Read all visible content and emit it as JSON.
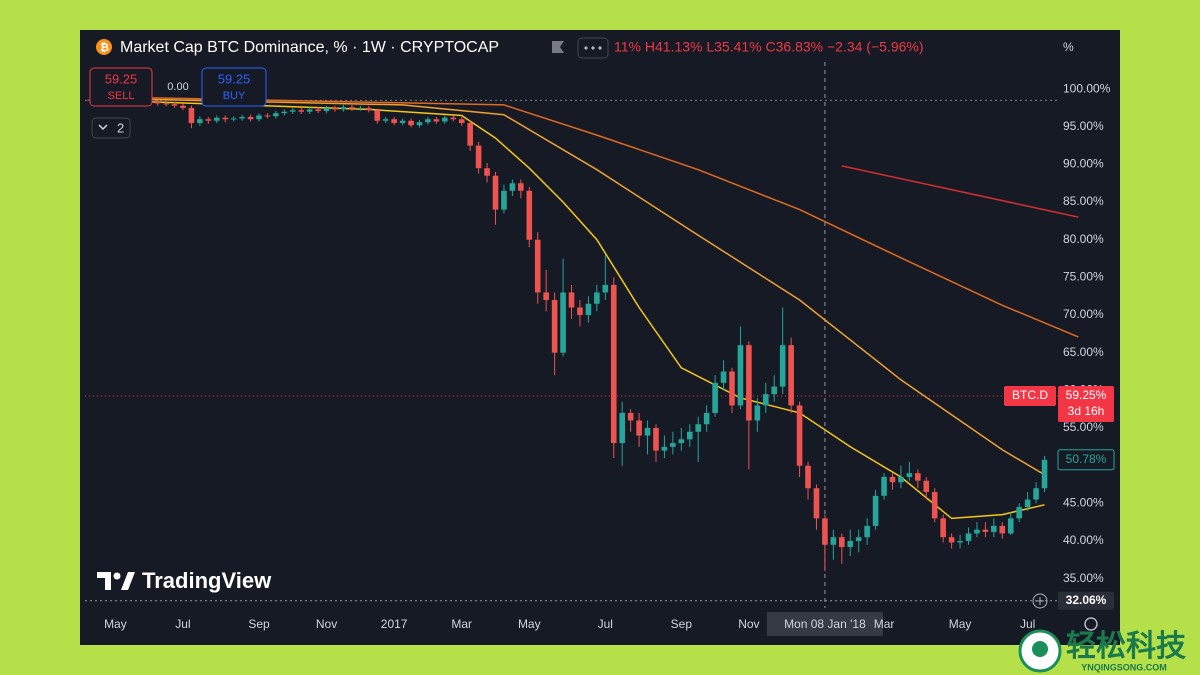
{
  "chart_data": {
    "type": "candlestick",
    "title": "Market Cap BTC Dominance, % · 1W · CRYPTOCAP",
    "ohlc_text": "11% H41.13% L35.41% C36.83% −2.34 (−5.96%)",
    "axis_unit": "%",
    "trade": {
      "sell": 59.25,
      "sell_label": "SELL",
      "spread": "0.00",
      "buy": 59.25,
      "buy_label": "BUY"
    },
    "indicator_count": 2,
    "logo": "TradingView",
    "watermark": {
      "title": "轻松科技",
      "site": "YNQINGSONG.COM"
    },
    "up_color": "#26a69a",
    "down_color": "#ef5350",
    "grid": false,
    "crosshair": 87,
    "categories": [
      null,
      null,
      null,
      "May",
      null,
      null,
      null,
      null,
      null,
      null,
      null,
      "Jul",
      null,
      null,
      null,
      null,
      null,
      null,
      null,
      null,
      "Sep",
      null,
      null,
      null,
      null,
      null,
      null,
      null,
      "Nov",
      null,
      null,
      null,
      null,
      null,
      null,
      null,
      "2017",
      null,
      null,
      null,
      null,
      null,
      null,
      null,
      "Mar",
      null,
      null,
      null,
      null,
      null,
      null,
      null,
      "May",
      null,
      null,
      null,
      null,
      null,
      null,
      null,
      null,
      "Jul",
      null,
      null,
      null,
      null,
      null,
      null,
      null,
      null,
      "Sep",
      null,
      null,
      null,
      null,
      null,
      null,
      null,
      "Nov",
      null,
      null,
      null,
      null,
      null,
      null,
      null,
      null,
      "Mon 08 Jan '18",
      null,
      null,
      null,
      null,
      null,
      null,
      "Mar",
      null,
      null,
      null,
      null,
      null,
      null,
      null,
      null,
      "May",
      null,
      null,
      null,
      null,
      null,
      null,
      null,
      "Jul",
      null,
      null
    ],
    "open": [
      98.6,
      98.5,
      98.4,
      98.6,
      98.5,
      98.3,
      98.4,
      98.2,
      98.3,
      98.1,
      98.0,
      97.8,
      97.5,
      95.5,
      96.0,
      95.8,
      96.2,
      96.0,
      96.1,
      96.3,
      96.0,
      96.5,
      96.4,
      96.8,
      97.0,
      97.2,
      97.0,
      97.3,
      97.1,
      97.5,
      97.3,
      97.6,
      97.4,
      97.5,
      97.2,
      95.8,
      96.0,
      95.5,
      95.8,
      95.2,
      95.6,
      96.0,
      95.7,
      96.2,
      96.0,
      95.5,
      92.5,
      89.5,
      88.5,
      84.0,
      86.5,
      87.5,
      86.5,
      80.0,
      73.0,
      72.0,
      65.0,
      73.0,
      71.0,
      70.0,
      71.5,
      73.0,
      74.0,
      53.0,
      57.0,
      56.0,
      54.0,
      55.0,
      52.0,
      52.5,
      53.0,
      53.5,
      54.5,
      55.5,
      57.0,
      61.0,
      62.5,
      58.0,
      66.0,
      56.0,
      58.0,
      59.5,
      60.5,
      66.0,
      58.0,
      50.0,
      47.0,
      43.0,
      39.5,
      40.5,
      39.2,
      40.0,
      40.5,
      42.0,
      46.0,
      48.5,
      47.8,
      48.5,
      49.0,
      48.0,
      46.5,
      43.0,
      40.5,
      39.8,
      40.0,
      41.0,
      41.5,
      41.2,
      42.0,
      41.0,
      43.0,
      44.5,
      45.5,
      47.0
    ],
    "high": [
      98.9,
      98.8,
      98.9,
      98.9,
      98.8,
      98.7,
      98.7,
      98.6,
      98.6,
      98.4,
      98.3,
      98.1,
      97.8,
      96.4,
      96.3,
      96.5,
      96.5,
      96.4,
      96.6,
      96.6,
      96.8,
      96.8,
      97.1,
      97.3,
      97.5,
      97.5,
      97.6,
      97.6,
      97.8,
      97.8,
      97.9,
      97.9,
      97.8,
      97.8,
      97.4,
      96.3,
      96.3,
      96.1,
      96.1,
      95.9,
      96.3,
      96.3,
      96.5,
      96.5,
      96.3,
      95.8,
      93.0,
      90.2,
      89.0,
      87.3,
      88.0,
      88.0,
      87.0,
      81.0,
      76.0,
      73.0,
      77.5,
      74.0,
      72.0,
      72.5,
      74.0,
      78.0,
      75.0,
      58.5,
      57.5,
      57.0,
      56.0,
      55.5,
      54.0,
      54.5,
      55.0,
      55.5,
      56.5,
      58.0,
      62.0,
      64.0,
      63.0,
      68.5,
      66.5,
      59.0,
      61.0,
      62.0,
      71.0,
      67.0,
      58.5,
      50.5,
      47.5,
      43.5,
      41.5,
      41.0,
      41.5,
      41.5,
      43.0,
      46.8,
      49.0,
      49.0,
      50.0,
      50.5,
      49.5,
      48.5,
      47.0,
      43.5,
      41.0,
      40.8,
      41.8,
      42.5,
      42.5,
      43.0,
      42.5,
      43.8,
      45.0,
      46.5,
      47.8,
      51.3
    ],
    "low": [
      98.2,
      98.1,
      98.2,
      98.2,
      98.0,
      98.0,
      97.9,
      97.9,
      97.8,
      97.7,
      97.5,
      97.2,
      94.8,
      95.1,
      95.4,
      95.5,
      95.6,
      95.7,
      95.8,
      95.7,
      95.7,
      96.1,
      96.1,
      96.5,
      96.7,
      96.7,
      96.7,
      96.8,
      96.8,
      97.0,
      97.0,
      97.1,
      97.1,
      96.9,
      95.4,
      95.5,
      95.2,
      95.2,
      94.9,
      94.9,
      95.3,
      95.4,
      95.4,
      95.7,
      95.1,
      91.8,
      88.8,
      87.6,
      82.0,
      83.5,
      85.8,
      85.5,
      79.0,
      71.5,
      70.5,
      62.0,
      64.5,
      69.5,
      68.5,
      69.0,
      70.5,
      72.0,
      51.0,
      50.0,
      54.5,
      52.5,
      51.5,
      50.5,
      51.0,
      51.5,
      52.0,
      52.5,
      50.5,
      54.5,
      56.5,
      60.0,
      57.0,
      57.5,
      49.5,
      54.5,
      57.0,
      58.5,
      59.5,
      57.0,
      48.5,
      45.5,
      41.5,
      36.0,
      37.5,
      37.0,
      38.0,
      38.5,
      39.5,
      41.5,
      45.5,
      46.8,
      47.0,
      48.0,
      47.0,
      45.5,
      42.5,
      39.8,
      39.0,
      39.0,
      39.5,
      40.5,
      40.5,
      40.5,
      40.3,
      40.8,
      42.5,
      44.0,
      45.0,
      46.5
    ],
    "close": [
      98.5,
      98.4,
      98.6,
      98.5,
      98.3,
      98.4,
      98.2,
      98.3,
      98.1,
      98.0,
      97.8,
      97.5,
      95.5,
      96.0,
      95.8,
      96.2,
      96.0,
      96.1,
      96.3,
      96.0,
      96.5,
      96.4,
      96.8,
      97.0,
      97.2,
      97.0,
      97.3,
      97.1,
      97.5,
      97.3,
      97.6,
      97.4,
      97.5,
      97.2,
      95.8,
      96.0,
      95.5,
      95.8,
      95.2,
      95.6,
      96.0,
      95.7,
      96.2,
      96.0,
      95.5,
      92.5,
      89.5,
      88.5,
      84.0,
      86.5,
      87.5,
      86.5,
      80.0,
      73.0,
      72.0,
      65.0,
      73.0,
      71.0,
      70.0,
      71.5,
      73.0,
      74.0,
      53.0,
      57.0,
      56.0,
      54.0,
      55.0,
      52.0,
      52.5,
      53.0,
      53.5,
      54.5,
      55.5,
      57.0,
      61.0,
      62.5,
      58.0,
      66.0,
      56.0,
      58.0,
      59.5,
      60.5,
      66.0,
      58.0,
      50.0,
      47.0,
      43.0,
      39.5,
      40.5,
      39.2,
      40.0,
      40.5,
      42.0,
      46.0,
      48.5,
      47.8,
      48.5,
      49.0,
      48.0,
      46.5,
      43.0,
      40.5,
      39.8,
      40.0,
      41.0,
      41.5,
      41.2,
      42.0,
      41.0,
      43.0,
      44.5,
      45.5,
      47.0,
      50.78
    ],
    "series": [
      {
        "color": "#f5c518",
        "x": [
          0,
          33,
          44,
          48,
          52,
          56,
          60,
          65,
          70,
          77,
          84,
          90,
          96,
          102,
          108,
          113
        ],
        "values": [
          98.6,
          97.3,
          96.5,
          93.5,
          89.5,
          85,
          80,
          71,
          63,
          59,
          57,
          52.5,
          48.5,
          43,
          43.5,
          44.8
        ]
      },
      {
        "color": "#f0a030",
        "x": [
          0,
          37,
          49,
          60,
          72,
          84,
          96,
          108,
          113
        ],
        "values": [
          98.8,
          97.9,
          96.6,
          89.3,
          80.6,
          72,
          61.4,
          52.1,
          48.8
        ]
      },
      {
        "color": "#e06a1e",
        "x": [
          0,
          49,
          60,
          72,
          84,
          96,
          108,
          117
        ],
        "values": [
          99,
          97.9,
          93.9,
          89.3,
          84,
          77.6,
          71.3,
          67.1
        ]
      },
      {
        "color": "#d32f2f",
        "x": [
          89,
          117
        ],
        "values": [
          89.8,
          83
        ]
      }
    ],
    "price_lines": [
      {
        "value": 59.25,
        "label": "59.25%",
        "name": "BTC.D",
        "countdown": "3d 16h",
        "color": "#f23645",
        "style": "solid-box"
      },
      {
        "value": 50.78,
        "label": "50.78%",
        "color": "#26a69a",
        "style": "outline-box"
      },
      {
        "value": 32.06,
        "label": "32.06%",
        "color": "#9598a1",
        "style": "gray-box"
      },
      {
        "value": 98.5,
        "color": "#787b86",
        "style": "dotted"
      }
    ],
    "xlim": [
      -0.6,
      117.2
    ],
    "ylim": [
      31.1,
      103.6
    ],
    "yticks": [
      {
        "value": 35,
        "label": "35.00%"
      },
      {
        "value": 40,
        "label": "40.00%"
      },
      {
        "value": 45,
        "label": "45.00%"
      },
      {
        "value": 50,
        "label": "50.00%"
      },
      {
        "value": 55,
        "label": "55.00%"
      },
      {
        "value": 60,
        "label": "60.00%"
      },
      {
        "value": 65,
        "label": "65.00%"
      },
      {
        "value": 70,
        "label": "70.00%"
      },
      {
        "value": 75,
        "label": "75.00%"
      },
      {
        "value": 80,
        "label": "80.00%"
      },
      {
        "value": 85,
        "label": "85.00%"
      },
      {
        "value": 90,
        "label": "90.00%"
      },
      {
        "value": 95,
        "label": "95.00%"
      },
      {
        "value": 100,
        "label": "100.00%"
      }
    ]
  }
}
